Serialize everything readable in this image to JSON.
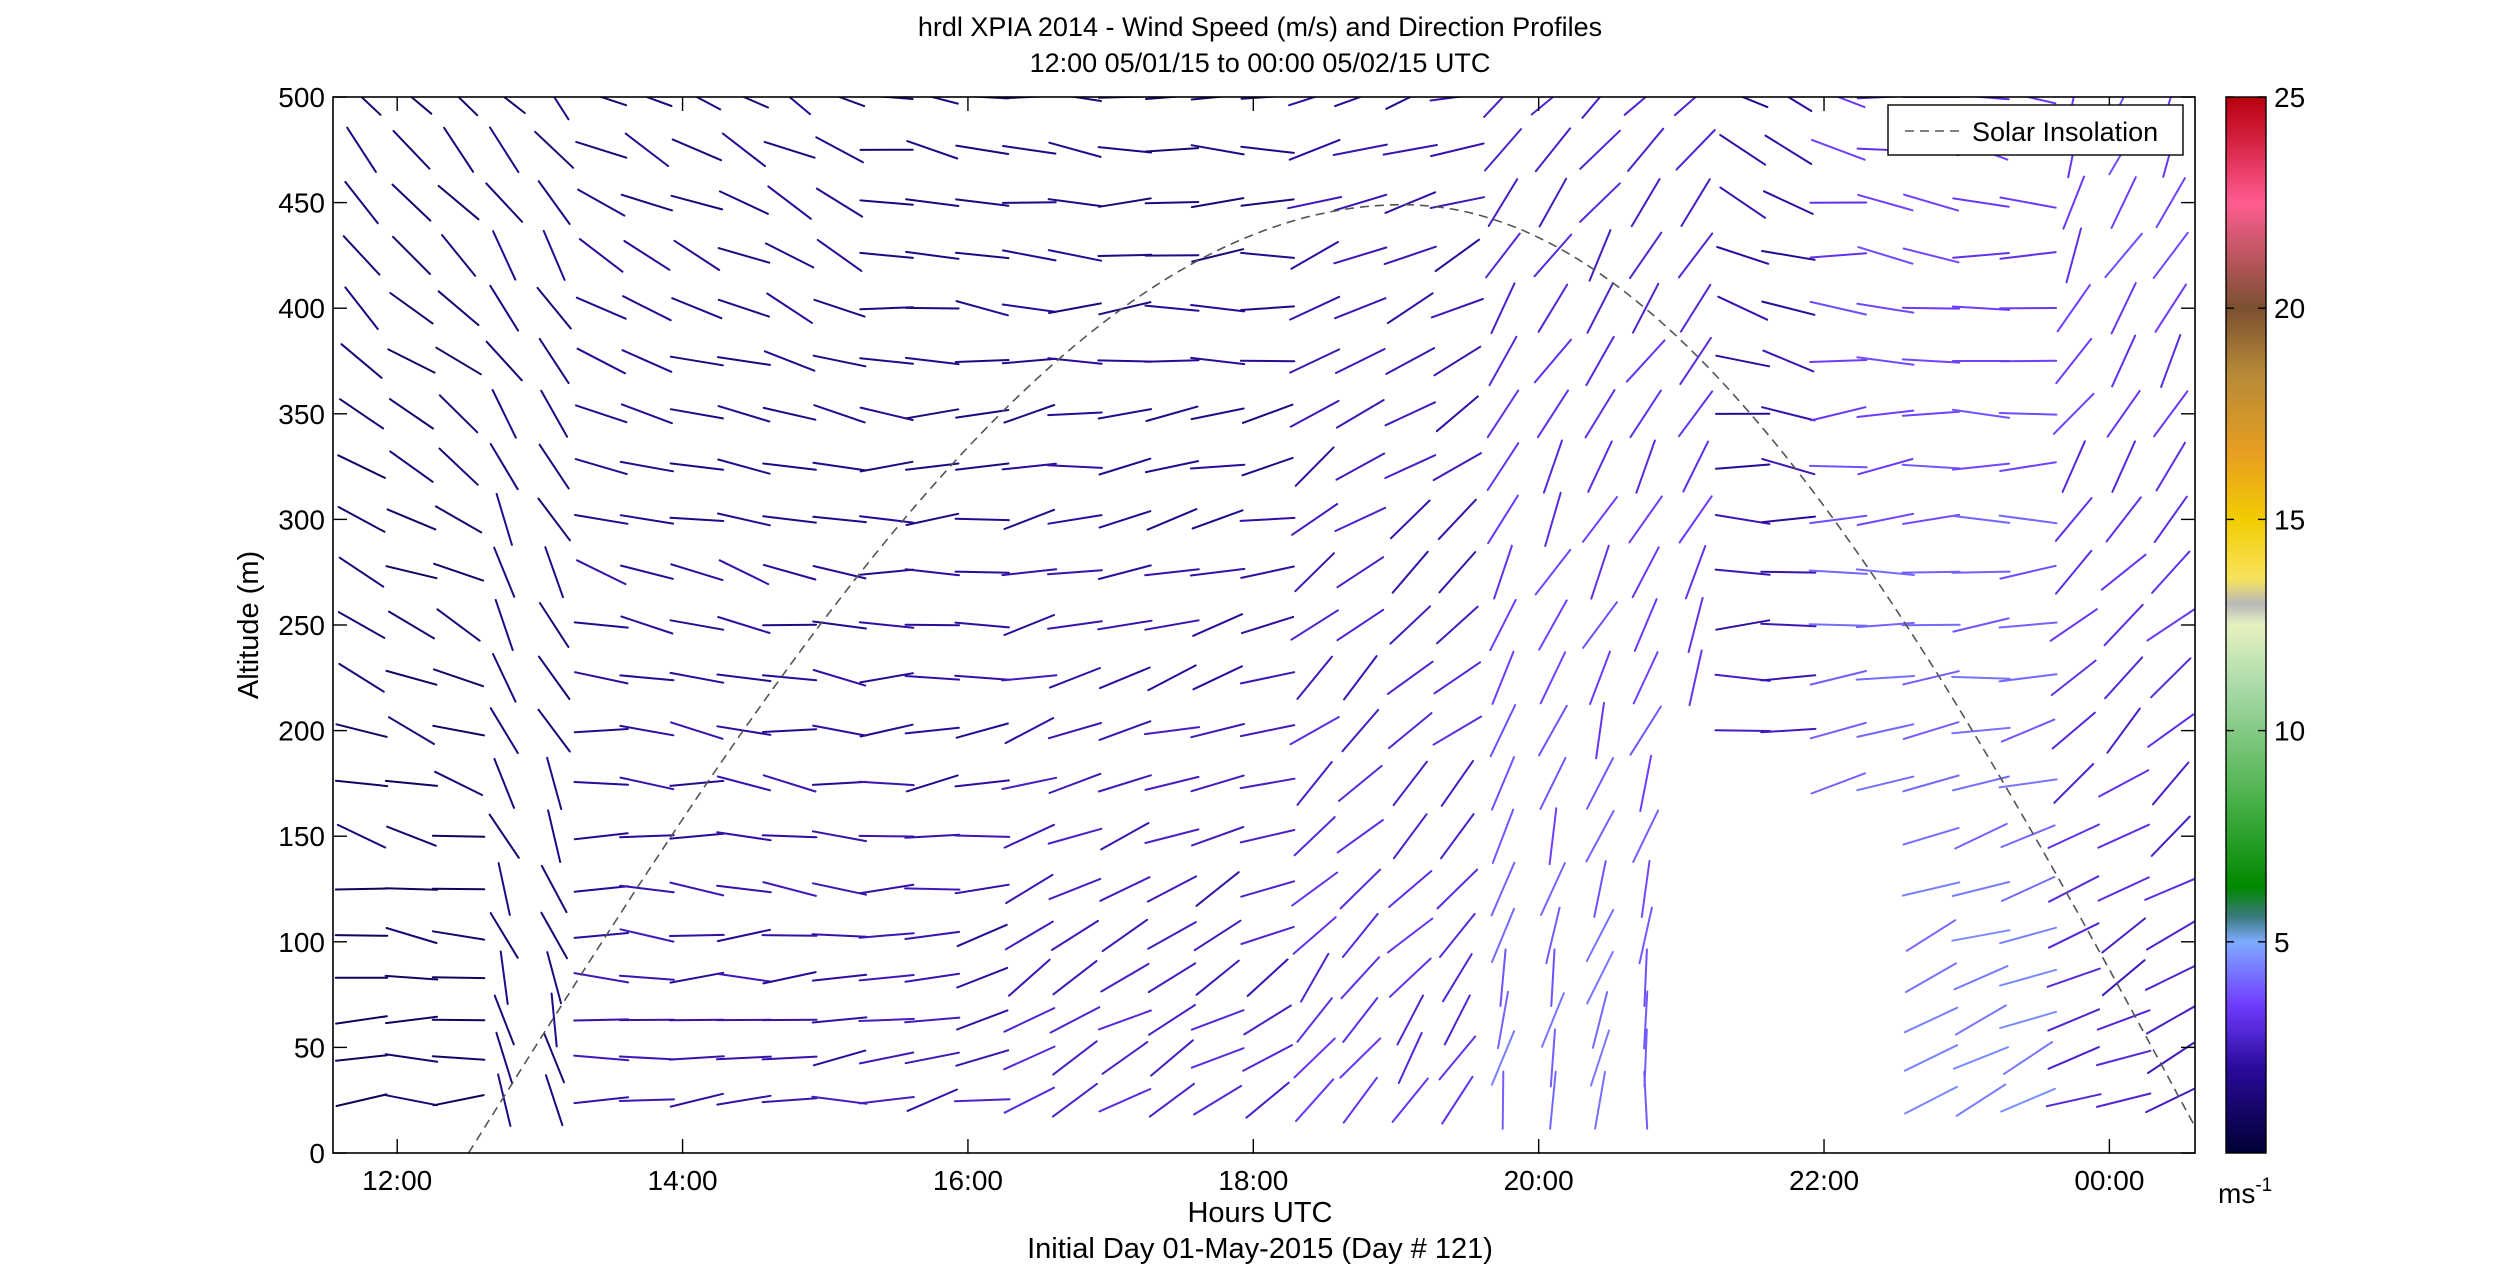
{
  "chart_data": {
    "type": "wind-barb-profile",
    "title_line1": "hrdl XPIA 2014 - Wind Speed (m/s) and Direction Profiles",
    "title_line2": "12:00 05/01/15 to 00:00 05/02/15  UTC",
    "xlabel": "Hours UTC",
    "xlabel_sub": "Initial Day 01-May-2015 (Day # 121)",
    "ylabel": "Altitude (m)",
    "x_range_hours": [
      11.55,
      24.6
    ],
    "x_ticks": [
      {
        "hour": 12,
        "label": "12:00"
      },
      {
        "hour": 14,
        "label": "14:00"
      },
      {
        "hour": 16,
        "label": "16:00"
      },
      {
        "hour": 18,
        "label": "18:00"
      },
      {
        "hour": 20,
        "label": "20:00"
      },
      {
        "hour": 22,
        "label": "22:00"
      },
      {
        "hour": 24,
        "label": "00:00"
      }
    ],
    "ylim": [
      0,
      500
    ],
    "y_ticks": [
      0,
      50,
      100,
      150,
      200,
      250,
      300,
      350,
      400,
      450,
      500
    ],
    "colorbar": {
      "range": [
        0,
        25
      ],
      "ticks": [
        5,
        10,
        15,
        20,
        25
      ],
      "unit_label": "ms",
      "unit_exponent": "-1",
      "stops": [
        {
          "v": 0,
          "c": "#000033"
        },
        {
          "v": 2,
          "c": "#2a0a9a"
        },
        {
          "v": 3.5,
          "c": "#6f3cff"
        },
        {
          "v": 5,
          "c": "#7faaff"
        },
        {
          "v": 5.6,
          "c": "#3a7a7a"
        },
        {
          "v": 6.3,
          "c": "#008800"
        },
        {
          "v": 8.5,
          "c": "#4fb34f"
        },
        {
          "v": 11,
          "c": "#a8d9a8"
        },
        {
          "v": 12.5,
          "c": "#e6f2c0"
        },
        {
          "v": 13,
          "c": "#b8b8b8"
        },
        {
          "v": 13.6,
          "c": "#f7e35c"
        },
        {
          "v": 15,
          "c": "#f2cc00"
        },
        {
          "v": 16.5,
          "c": "#e8a020"
        },
        {
          "v": 18.5,
          "c": "#b58838"
        },
        {
          "v": 20,
          "c": "#7a5030"
        },
        {
          "v": 22.5,
          "c": "#ff5c90"
        },
        {
          "v": 24,
          "c": "#d42040"
        },
        {
          "v": 25,
          "c": "#b8000c"
        }
      ]
    },
    "legend": {
      "label": "Solar Insolation",
      "style": "dashed",
      "placement": "top-right"
    },
    "solar_insolation": {
      "start_hour": 12.5,
      "end_hour": 24.7,
      "peak_hour": 19.05,
      "peak_altitude": 449
    },
    "profile_altitudes": [
      25,
      45,
      63,
      83,
      103,
      125,
      150,
      175,
      200,
      225,
      250,
      275,
      300,
      325,
      350,
      375,
      400,
      425,
      450,
      475,
      500
    ],
    "profile_times": [
      11.75,
      12.1,
      12.43,
      12.75,
      13.1,
      13.43,
      13.75,
      14.1,
      14.43,
      14.75,
      15.1,
      15.43,
      15.75,
      16.1,
      16.43,
      16.75,
      17.1,
      17.43,
      17.75,
      18.1,
      18.43,
      18.75,
      19.1,
      19.43,
      19.75,
      20.1,
      20.43,
      20.75,
      21.1,
      21.43,
      21.75,
      22.1,
      22.43,
      22.75,
      23.1,
      23.43,
      23.75,
      24.1,
      24.43
    ],
    "gaps": [
      {
        "from": 21.0,
        "to": 21.4,
        "below": 225
      },
      {
        "from": 21.4,
        "to": 21.9,
        "below": 200
      },
      {
        "from": 22.0,
        "to": 22.5,
        "below": 175
      }
    ],
    "wind_regimes": [
      {
        "until_hour": 12.6,
        "low_dir": 270,
        "high_dir": 320,
        "low_speed": 1.0,
        "high_speed": 1.3
      },
      {
        "until_hour": 13.4,
        "low_dir": 345,
        "high_dir": 320,
        "low_speed": 1.5,
        "high_speed": 1.5
      },
      {
        "until_hour": 15.2,
        "low_dir": 265,
        "high_dir": 300,
        "low_speed": 2.3,
        "high_speed": 1.6
      },
      {
        "until_hour": 16.4,
        "low_dir": 255,
        "high_dir": 280,
        "low_speed": 2.4,
        "high_speed": 1.4
      },
      {
        "until_hour": 18.2,
        "low_dir": 235,
        "high_dir": 275,
        "low_speed": 2.8,
        "high_speed": 1.4
      },
      {
        "until_hour": 19.6,
        "low_dir": 215,
        "high_dir": 250,
        "low_speed": 3.2,
        "high_speed": 2.0
      },
      {
        "until_hour": 21.1,
        "low_dir": 190,
        "high_dir": 220,
        "low_speed": 4.2,
        "high_speed": 2.6
      },
      {
        "until_hour": 22.0,
        "low_dir": 240,
        "high_dir": 300,
        "low_speed": 2.6,
        "high_speed": 2.0
      },
      {
        "until_hour": 23.6,
        "low_dir": 245,
        "high_dir": 280,
        "low_speed": 4.6,
        "high_speed": 3.2
      },
      {
        "until_hour": 24.7,
        "low_dir": 245,
        "high_dir": 200,
        "low_speed": 2.6,
        "high_speed": 3.6
      }
    ]
  }
}
